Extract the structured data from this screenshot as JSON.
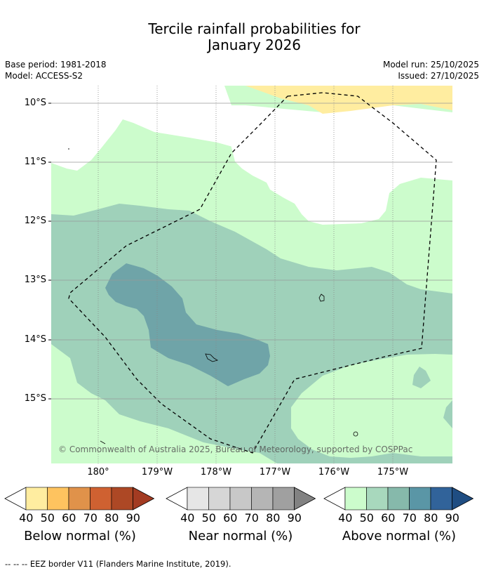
{
  "title_line1": "Tercile rainfall probabilities for",
  "title_line2": "January 2026",
  "meta": {
    "base_period": "Base period: 1981-2018",
    "model": "Model: ACCESS-S2",
    "model_run": "Model run: 25/10/2025",
    "issued": "Issued: 27/10/2025"
  },
  "map": {
    "lat_labels": [
      "10°S",
      "11°S",
      "12°S",
      "13°S",
      "14°S",
      "15°S"
    ],
    "lon_labels": [
      "180°",
      "179°W",
      "178°W",
      "177°W",
      "176°W",
      "175°W"
    ],
    "copyright": "© Commonwealth of Australia 2025, Bureau of Meteorology, supported by COSPPac",
    "colors": {
      "above_40_50": "#ccfccc",
      "above_50_60": "#9fd1ba",
      "above_60_70": "#6fa4a8",
      "below_40_50": "#ffeda0",
      "ocean_white": "#ffffff"
    }
  },
  "colorbars": [
    {
      "name": "below",
      "title": "Below normal (%)",
      "ticks": [
        "40",
        "50",
        "60",
        "70",
        "80",
        "90"
      ],
      "colors": [
        "#ffffff",
        "#ffeda0",
        "#fec35f",
        "#e0924a",
        "#cf6131",
        "#ad4825",
        "#a33b22"
      ]
    },
    {
      "name": "near",
      "title": "Near normal (%)",
      "ticks": [
        "40",
        "50",
        "60",
        "70",
        "80",
        "90"
      ],
      "colors": [
        "#ffffff",
        "#e6e6e6",
        "#d6d6d6",
        "#c8c8c8",
        "#b5b5b5",
        "#a0a0a0",
        "#828282"
      ]
    },
    {
      "name": "above",
      "title": "Above normal (%)",
      "ticks": [
        "40",
        "50",
        "60",
        "70",
        "80",
        "90"
      ],
      "colors": [
        "#ffffff",
        "#ccfccc",
        "#a8d8bd",
        "#86b9ab",
        "#5a96a6",
        "#31639a",
        "#1f4d82"
      ]
    }
  ],
  "footnote": "--  --  -- EEZ border V11 (Flanders Marine Institute, 2019)."
}
